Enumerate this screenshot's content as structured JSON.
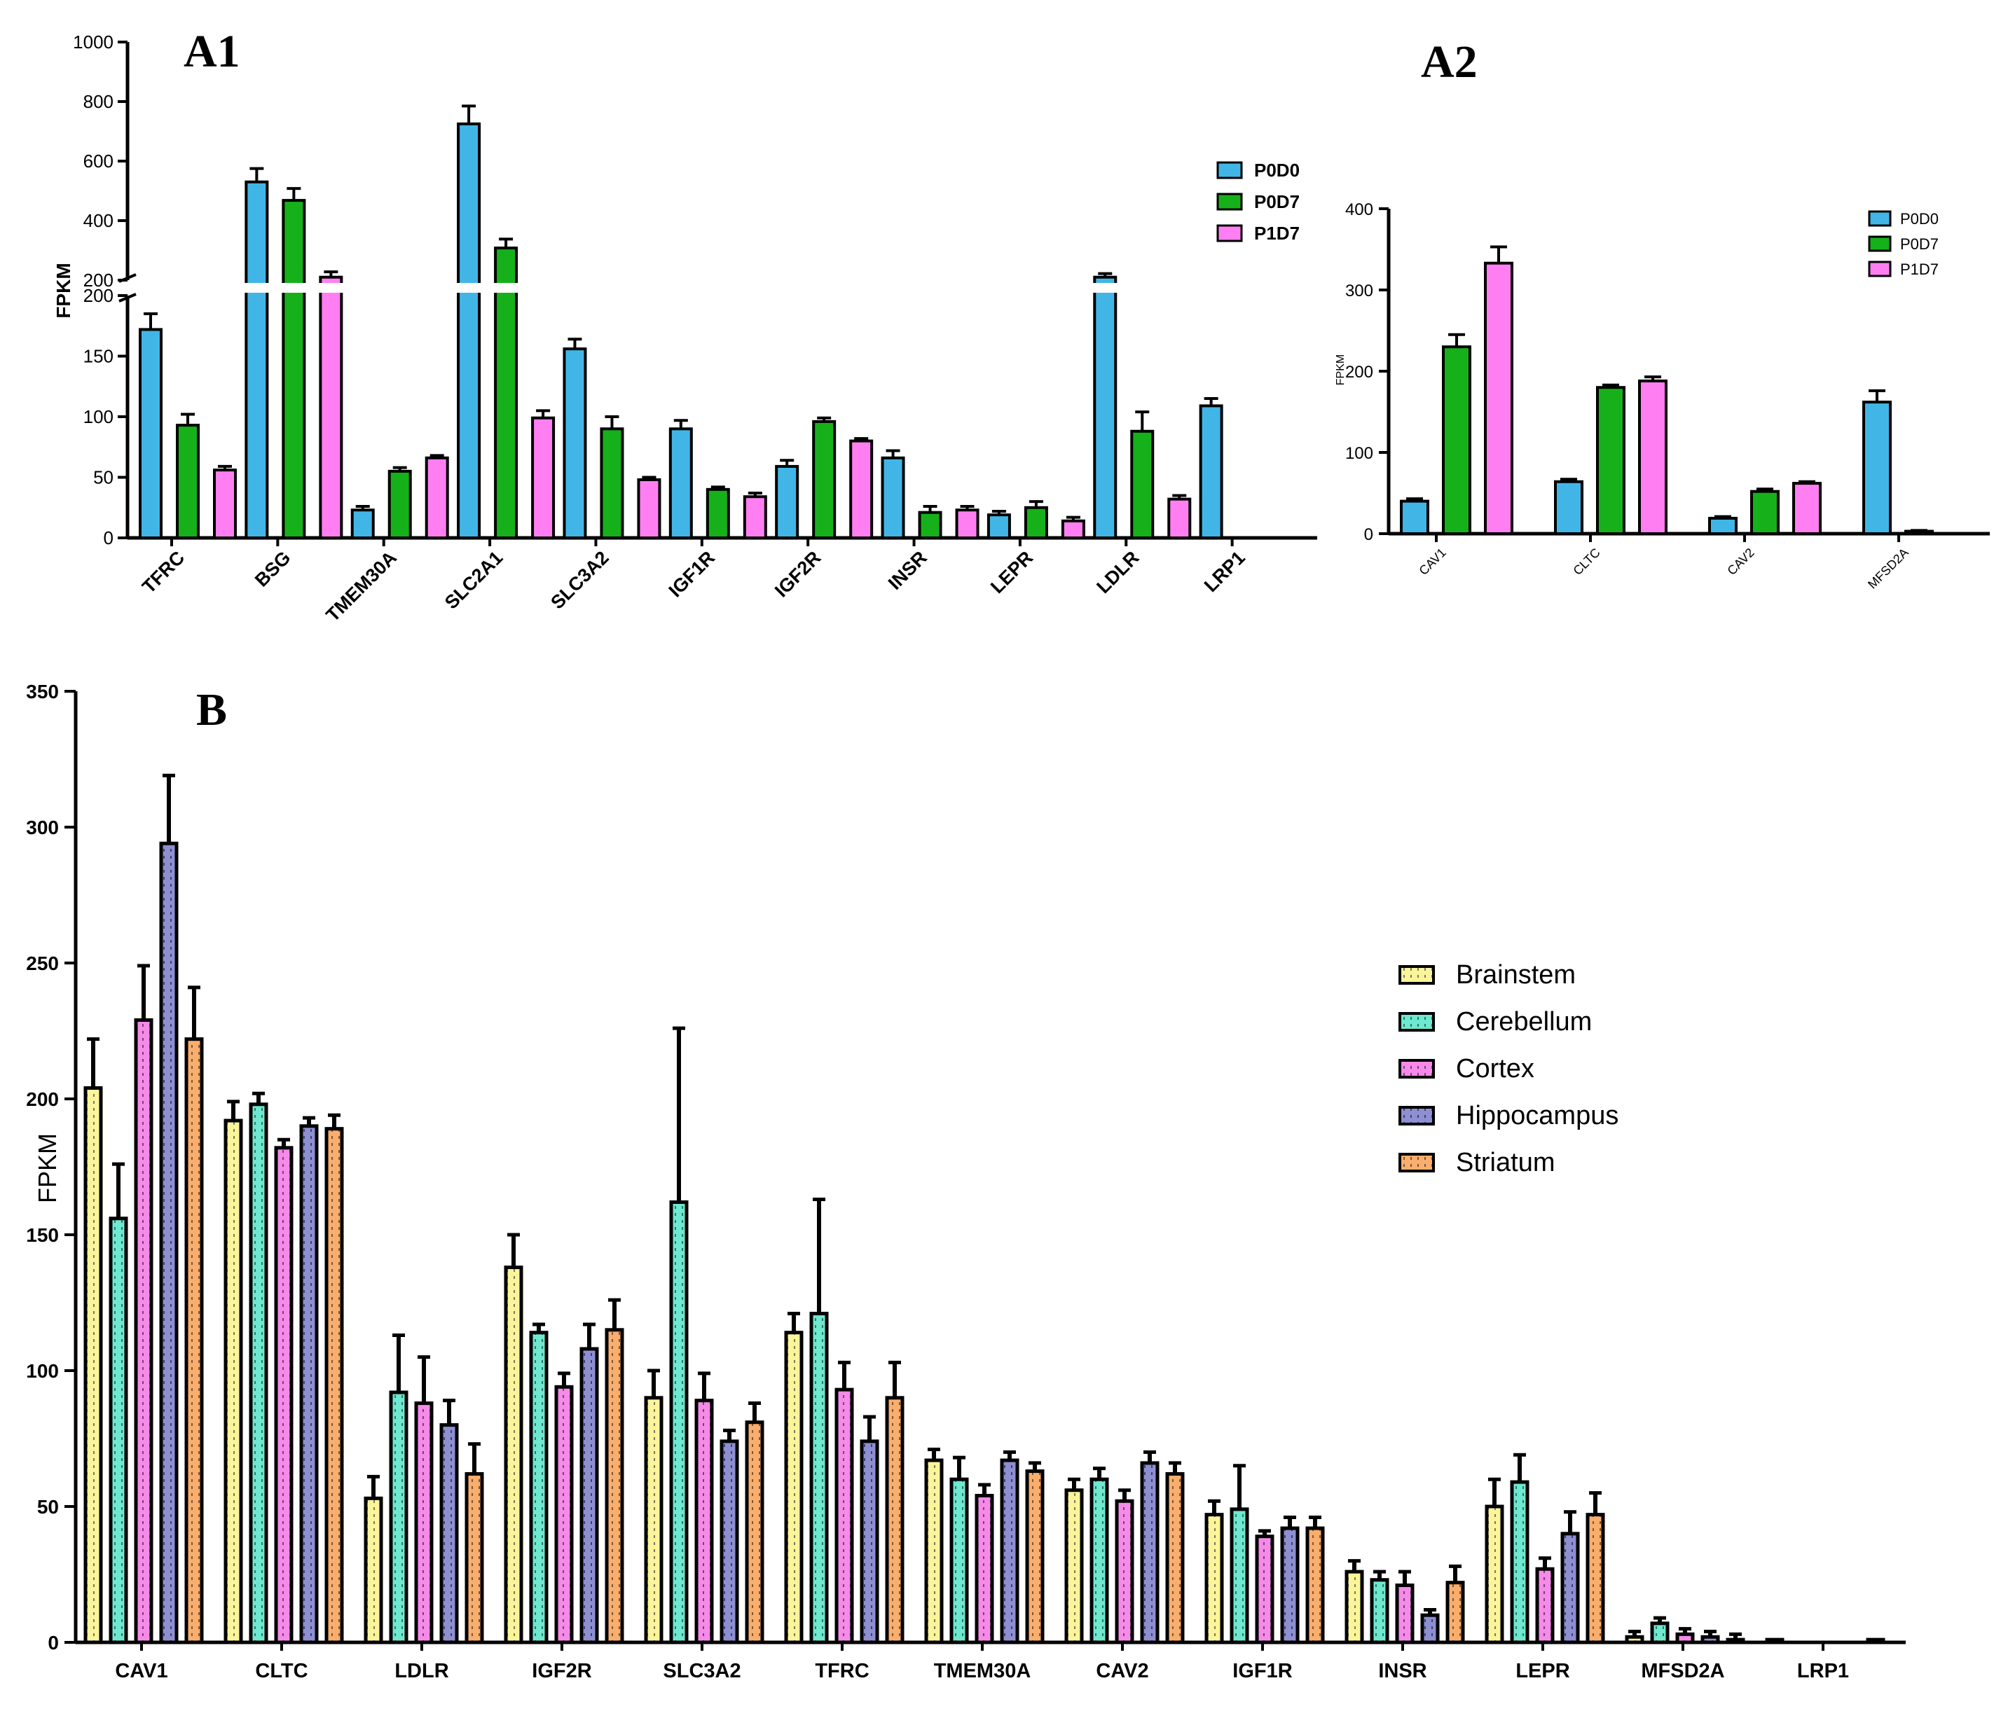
{
  "chart_data": [
    {
      "id": "A1",
      "type": "bar",
      "panel_label": "A1",
      "ylabel": "FPKM",
      "axis_break": true,
      "yticks_lower": [
        0,
        50,
        100,
        150,
        200
      ],
      "yticks_upper": [
        200,
        400,
        600,
        800,
        1000
      ],
      "categories": [
        "TFRC",
        "BSG",
        "TMEM30A",
        "SLC2A1",
        "SLC3A2",
        "IGF1R",
        "IGF2R",
        "INSR",
        "LEPR",
        "LDLR",
        "LRP1"
      ],
      "series": [
        {
          "name": "P0D0",
          "color": "#41b6e6",
          "values": [
            172,
            530,
            23,
            725,
            156,
            90,
            59,
            66,
            19,
            210,
            109
          ],
          "errors": [
            13,
            45,
            3,
            60,
            8,
            7,
            5,
            6,
            3,
            12,
            6
          ]
        },
        {
          "name": "P0D7",
          "color": "#16b11a",
          "values": [
            93,
            468,
            55,
            308,
            90,
            40,
            96,
            21,
            25,
            88,
            0
          ],
          "errors": [
            9,
            40,
            3,
            30,
            10,
            2,
            3,
            5,
            5,
            16,
            0
          ]
        },
        {
          "name": "P1D7",
          "color": "#ff7ff2",
          "values": [
            56,
            210,
            66,
            99,
            48,
            34,
            80,
            23,
            14,
            32,
            0
          ],
          "errors": [
            3,
            18,
            2,
            6,
            2,
            3,
            2,
            3,
            3,
            3,
            0
          ]
        }
      ],
      "legend_position": "top-right"
    },
    {
      "id": "A2",
      "type": "bar",
      "panel_label": "A2",
      "ylabel": "FPKM",
      "ylim": [
        0,
        400
      ],
      "yticks": [
        0,
        100,
        200,
        300,
        400
      ],
      "categories": [
        "CAV1",
        "CLTC",
        "CAV2",
        "MFSD2A"
      ],
      "series": [
        {
          "name": "P0D0",
          "color": "#41b6e6",
          "values": [
            40,
            64,
            19,
            162
          ],
          "errors": [
            3,
            3,
            2,
            14
          ]
        },
        {
          "name": "P0D7",
          "color": "#16b11a",
          "values": [
            230,
            180,
            52,
            3
          ],
          "errors": [
            15,
            3,
            3,
            1
          ]
        },
        {
          "name": "P1D7",
          "color": "#ff7ff2",
          "values": [
            333,
            188,
            62,
            0
          ],
          "errors": [
            20,
            5,
            2,
            0
          ]
        }
      ],
      "legend_position": "top-right"
    },
    {
      "id": "B",
      "type": "bar",
      "panel_label": "B",
      "ylabel": "FPKM",
      "ylim": [
        0,
        350
      ],
      "yticks": [
        0,
        50,
        100,
        150,
        200,
        250,
        300,
        350
      ],
      "categories": [
        "CAV1",
        "CLTC",
        "LDLR",
        "IGF2R",
        "SLC3A2",
        "TFRC",
        "TMEM30A",
        "CAV2",
        "IGF1R",
        "INSR",
        "LEPR",
        "MFSD2A",
        "LRP1"
      ],
      "series": [
        {
          "name": "Brainstem",
          "color": "#fbf59a",
          "values": [
            204,
            192,
            53,
            138,
            90,
            114,
            67,
            56,
            47,
            26,
            50,
            2,
            1
          ],
          "errors": [
            18,
            7,
            8,
            12,
            10,
            7,
            4,
            4,
            5,
            4,
            10,
            2,
            0
          ]
        },
        {
          "name": "Cerebellum",
          "color": "#6ee8cf",
          "values": [
            156,
            198,
            92,
            114,
            162,
            121,
            60,
            60,
            49,
            23,
            59,
            7,
            0
          ],
          "errors": [
            20,
            4,
            21,
            3,
            64,
            42,
            8,
            4,
            16,
            3,
            10,
            2,
            0
          ]
        },
        {
          "name": "Cortex",
          "color": "#f58ae9",
          "values": [
            229,
            182,
            88,
            94,
            89,
            93,
            54,
            52,
            39,
            21,
            27,
            3,
            0
          ],
          "errors": [
            20,
            3,
            17,
            5,
            10,
            10,
            4,
            4,
            2,
            5,
            4,
            2,
            0
          ]
        },
        {
          "name": "Hippocampus",
          "color": "#8e8fd1",
          "values": [
            294,
            190,
            80,
            108,
            74,
            74,
            67,
            66,
            42,
            10,
            40,
            2,
            0
          ],
          "errors": [
            25,
            3,
            9,
            9,
            4,
            9,
            3,
            4,
            4,
            2,
            8,
            2,
            0
          ]
        },
        {
          "name": "Striatum",
          "color": "#f9ae6e",
          "values": [
            222,
            189,
            62,
            115,
            81,
            90,
            63,
            62,
            42,
            22,
            47,
            1,
            1
          ],
          "errors": [
            19,
            5,
            11,
            11,
            7,
            13,
            3,
            4,
            4,
            6,
            8,
            2,
            0
          ]
        }
      ],
      "legend_position": "center-right"
    }
  ]
}
